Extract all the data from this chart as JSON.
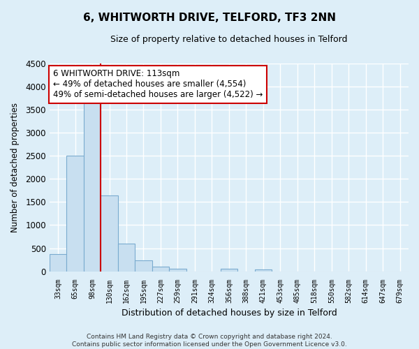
{
  "title": "6, WHITWORTH DRIVE, TELFORD, TF3 2NN",
  "subtitle": "Size of property relative to detached houses in Telford",
  "xlabel": "Distribution of detached houses by size in Telford",
  "ylabel": "Number of detached properties",
  "bar_labels": [
    "33sqm",
    "65sqm",
    "98sqm",
    "130sqm",
    "162sqm",
    "195sqm",
    "227sqm",
    "259sqm",
    "291sqm",
    "324sqm",
    "356sqm",
    "388sqm",
    "421sqm",
    "453sqm",
    "485sqm",
    "518sqm",
    "550sqm",
    "582sqm",
    "614sqm",
    "647sqm",
    "679sqm"
  ],
  "bar_values": [
    380,
    2500,
    3750,
    1640,
    600,
    240,
    100,
    55,
    0,
    0,
    50,
    0,
    40,
    0,
    0,
    0,
    0,
    0,
    0,
    0,
    0
  ],
  "bar_color": "#c8dff0",
  "bar_edge_color": "#7aabcf",
  "marker_color": "#cc0000",
  "ylim": [
    0,
    4500
  ],
  "yticks": [
    0,
    500,
    1000,
    1500,
    2000,
    2500,
    3000,
    3500,
    4000,
    4500
  ],
  "annotation_box_title": "6 WHITWORTH DRIVE: 113sqm",
  "annotation_line1": "← 49% of detached houses are smaller (4,554)",
  "annotation_line2": "49% of semi-detached houses are larger (4,522) →",
  "annotation_box_color": "#ffffff",
  "annotation_box_edge": "#cc0000",
  "footer_line1": "Contains HM Land Registry data © Crown copyright and database right 2024.",
  "footer_line2": "Contains public sector information licensed under the Open Government Licence v3.0.",
  "background_color": "#ddeef8",
  "plot_background": "#ddeef8",
  "grid_color": "#ffffff"
}
